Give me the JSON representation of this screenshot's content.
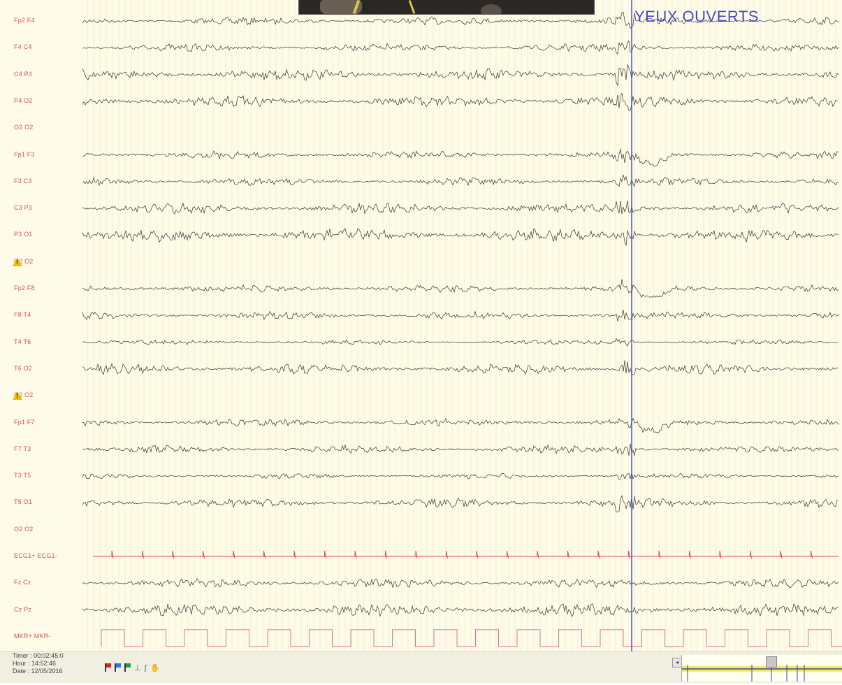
{
  "channels": [
    {
      "label": "Fp2 F4",
      "type": "eeg",
      "amp": 6
    },
    {
      "label": "F4 C4",
      "type": "eeg",
      "amp": 6
    },
    {
      "label": "C4 P4",
      "type": "eeg",
      "amp": 9
    },
    {
      "label": "P4 O2",
      "type": "eeg",
      "amp": 9
    },
    {
      "label": "O2 O2",
      "type": "flat",
      "amp": 0
    },
    {
      "label": "Fp1 F3",
      "type": "eeg",
      "amp": 6
    },
    {
      "label": "F3 C3",
      "type": "eeg",
      "amp": 6
    },
    {
      "label": "C3 P3",
      "type": "eeg",
      "amp": 8
    },
    {
      "label": "P3 O1",
      "type": "eeg",
      "amp": 10
    },
    {
      "label": "O2 O2",
      "type": "flat",
      "amp": 0,
      "warning": true
    },
    {
      "label": "Fp2 F8",
      "type": "eeg",
      "amp": 6
    },
    {
      "label": "F8 T4",
      "type": "eeg",
      "amp": 6
    },
    {
      "label": "T4 T6",
      "type": "eeg",
      "amp": 4
    },
    {
      "label": "T6 O2",
      "type": "eeg",
      "amp": 8
    },
    {
      "label": "O2 O2",
      "type": "flat",
      "amp": 0,
      "warning": true
    },
    {
      "label": "Fp1 F7",
      "type": "eeg",
      "amp": 6
    },
    {
      "label": "F7 T3",
      "type": "eeg",
      "amp": 6
    },
    {
      "label": "T3 T5",
      "type": "eeg",
      "amp": 4
    },
    {
      "label": "T5 O1",
      "type": "eeg",
      "amp": 7
    },
    {
      "label": "O2 O2",
      "type": "flat",
      "amp": 0
    },
    {
      "label": "ECG1+ ECG1-",
      "type": "ecg",
      "amp": 8
    },
    {
      "label": "Fz Cz",
      "type": "eeg",
      "amp": 7
    },
    {
      "label": "Cz Pz",
      "type": "eeg",
      "amp": 10
    },
    {
      "label": "MKR+ MKR-",
      "type": "marker",
      "amp": 24
    }
  ],
  "annotation": "YEUX OUVERTS",
  "status": {
    "timer": "Timer : 00:02:45:0",
    "hour": "Hour : 14:52:46",
    "date": "Date : 12/05/2016"
  },
  "toolbar": [
    {
      "name": "red-flag-icon",
      "kind": "flag",
      "color": "#e02020"
    },
    {
      "name": "blue-flag-icon",
      "kind": "flag",
      "color": "#2080e0"
    },
    {
      "name": "green-flag-icon",
      "kind": "flag",
      "color": "#20a040"
    },
    {
      "name": "ground-icon",
      "kind": "glyph",
      "glyph": "⊥"
    },
    {
      "name": "wave-tool-icon",
      "kind": "glyph",
      "glyph": "ʃ"
    },
    {
      "name": "hand-tool-icon",
      "kind": "glyph",
      "glyph": "✋"
    }
  ],
  "colors": {
    "background": "#fefce8",
    "label": "#e05050",
    "trace": "#333333",
    "ecg": "#e04848",
    "marker": "#e070a0",
    "cursor": "#4455cc",
    "annotation": "#3a3ac8",
    "grid": "#e8e4c8"
  },
  "icons": {
    "warning": "warning-icon",
    "scroll_left": "◂"
  }
}
